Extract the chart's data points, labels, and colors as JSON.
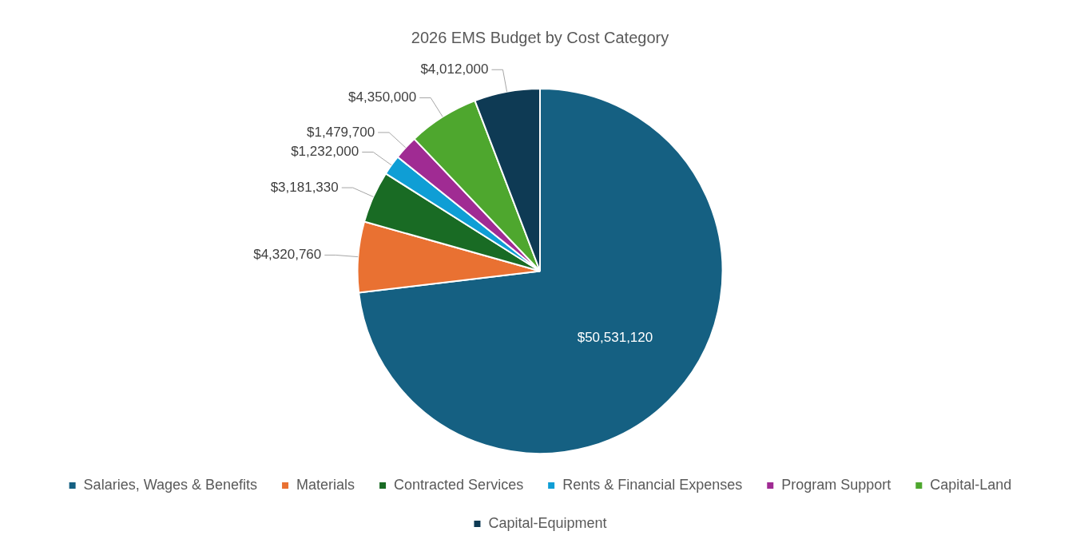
{
  "chart_data": {
    "type": "pie",
    "title": "2026 EMS Budget by Cost Category",
    "categories": [
      "Salaries, Wages & Benefits",
      "Materials",
      "Contracted Services",
      "Rents & Financial Expenses",
      "Program Support",
      "Capital-Land",
      "Capital-Equipment"
    ],
    "values": [
      50531120,
      4320760,
      3181330,
      1232000,
      1479700,
      4350000,
      4012000
    ],
    "colors": [
      "#156082",
      "#e97132",
      "#196b24",
      "#0f9ed5",
      "#a02b93",
      "#4ea72e",
      "#0e3a54"
    ],
    "value_labels": [
      "$50,531,120",
      "$4,320,760",
      "$3,181,330",
      "$1,232,000",
      "$1,479,700",
      "$4,350,000",
      "$4,012,000"
    ],
    "legend": "bottom"
  }
}
